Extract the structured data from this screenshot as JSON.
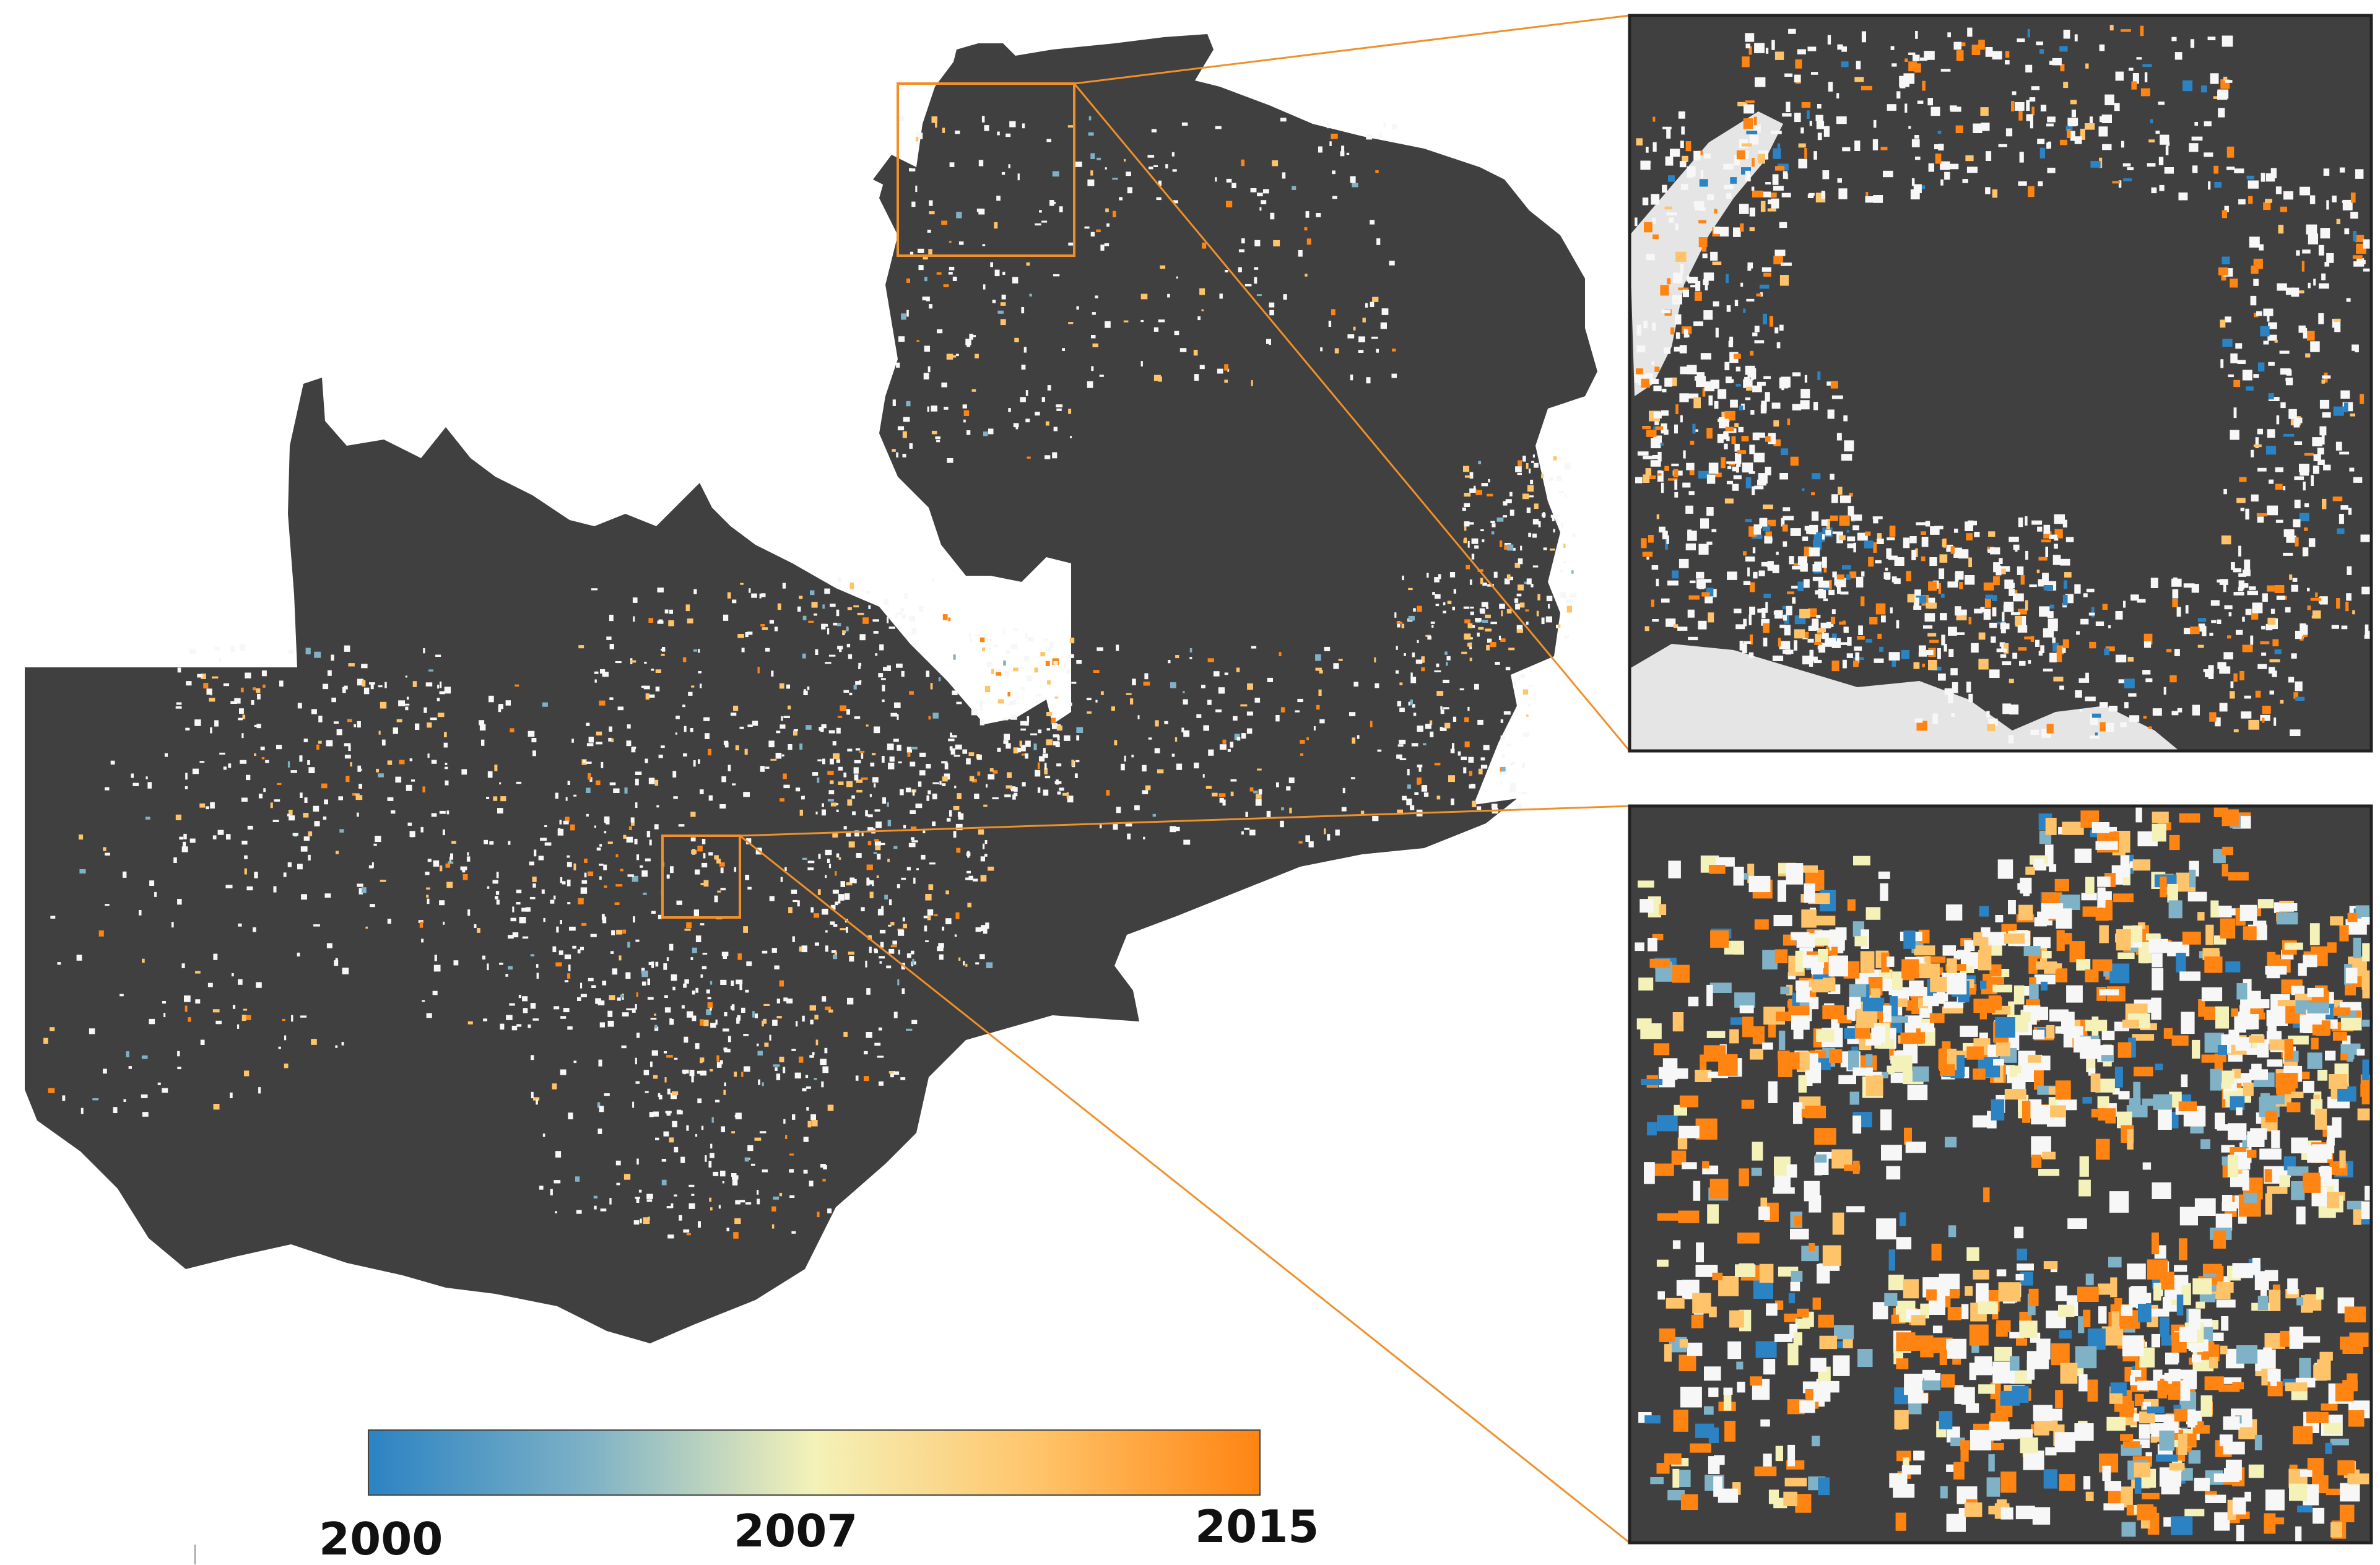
{
  "legend": {
    "labels": [
      "2000",
      "2007",
      "2015"
    ],
    "gradient_stops": [
      "#2b83c3",
      "#7fb2c6",
      "#f4f2b8",
      "#ffc46a",
      "#ff8411"
    ]
  },
  "colors": {
    "background": "#ffffff",
    "forest": "#404040",
    "non_forest": "#f7f7f7",
    "inset_border": "#222222",
    "callout": "#f0902a"
  }
}
